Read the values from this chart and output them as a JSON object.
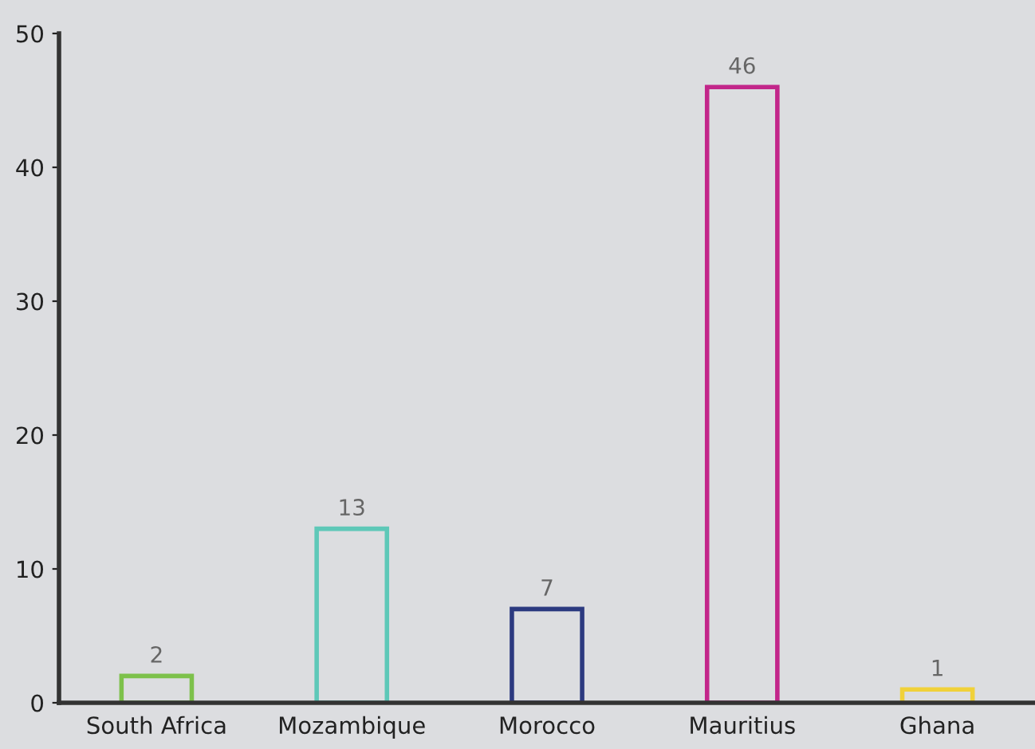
{
  "chart_data": {
    "type": "bar",
    "categories": [
      "South Africa",
      "Mozambique",
      "Morocco",
      "Mauritius",
      "Ghana"
    ],
    "values": [
      2,
      13,
      7,
      46,
      1
    ],
    "colors": [
      "#7dc14b",
      "#5ec8b8",
      "#2c3a80",
      "#c2268a",
      "#f0d13a"
    ],
    "ylim": [
      0,
      50
    ],
    "yticks": [
      0,
      10,
      20,
      30,
      40,
      50
    ],
    "data_labels": true,
    "grid": false
  }
}
